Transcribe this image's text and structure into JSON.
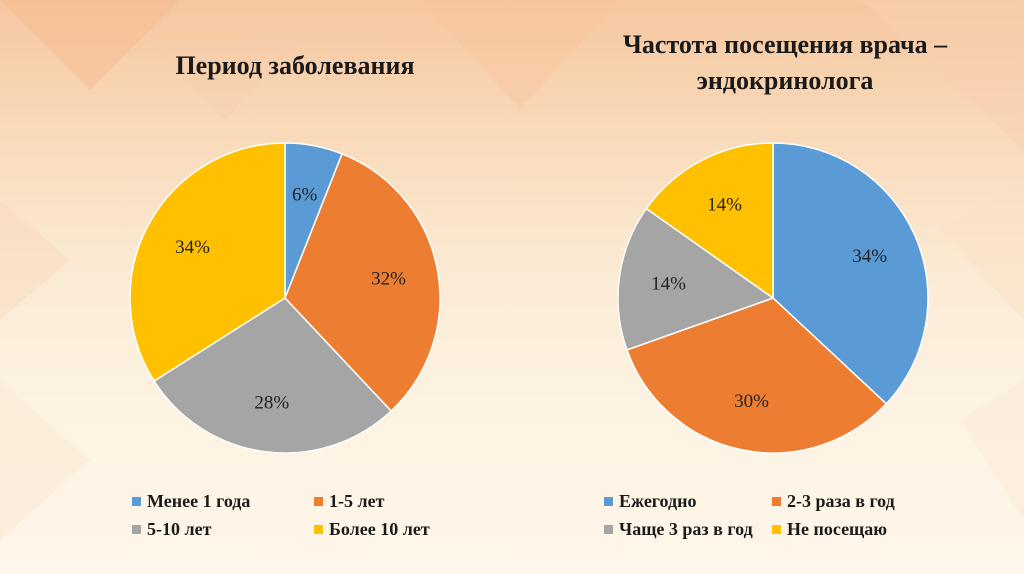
{
  "colors": {
    "blue": "#5b9bd5",
    "orange": "#ed7d31",
    "gray": "#a5a5a5",
    "yellow": "#ffc000"
  },
  "chart_data": [
    {
      "type": "pie",
      "title": "Период заболевания",
      "categories": [
        "Менее 1 года",
        "1-5 лет",
        "5-10 лет",
        "Более 10 лет"
      ],
      "values": [
        6,
        32,
        28,
        34
      ],
      "labels": [
        "6%",
        "32%",
        "28%",
        "34%"
      ],
      "colors": [
        "#5b9bd5",
        "#ed7d31",
        "#a5a5a5",
        "#ffc000"
      ],
      "legend": "bottom"
    },
    {
      "type": "pie",
      "title": "Частота посещения врача – эндокринолога",
      "categories": [
        "Ежегодно",
        "2-3 раза в год",
        "Чаще 3 раз в год",
        "Не посещаю"
      ],
      "values": [
        34,
        30,
        14,
        14
      ],
      "labels": [
        "34%",
        "30%",
        "14%",
        "14%"
      ],
      "colors": [
        "#5b9bd5",
        "#ed7d31",
        "#a5a5a5",
        "#ffc000"
      ],
      "legend": "bottom"
    }
  ]
}
